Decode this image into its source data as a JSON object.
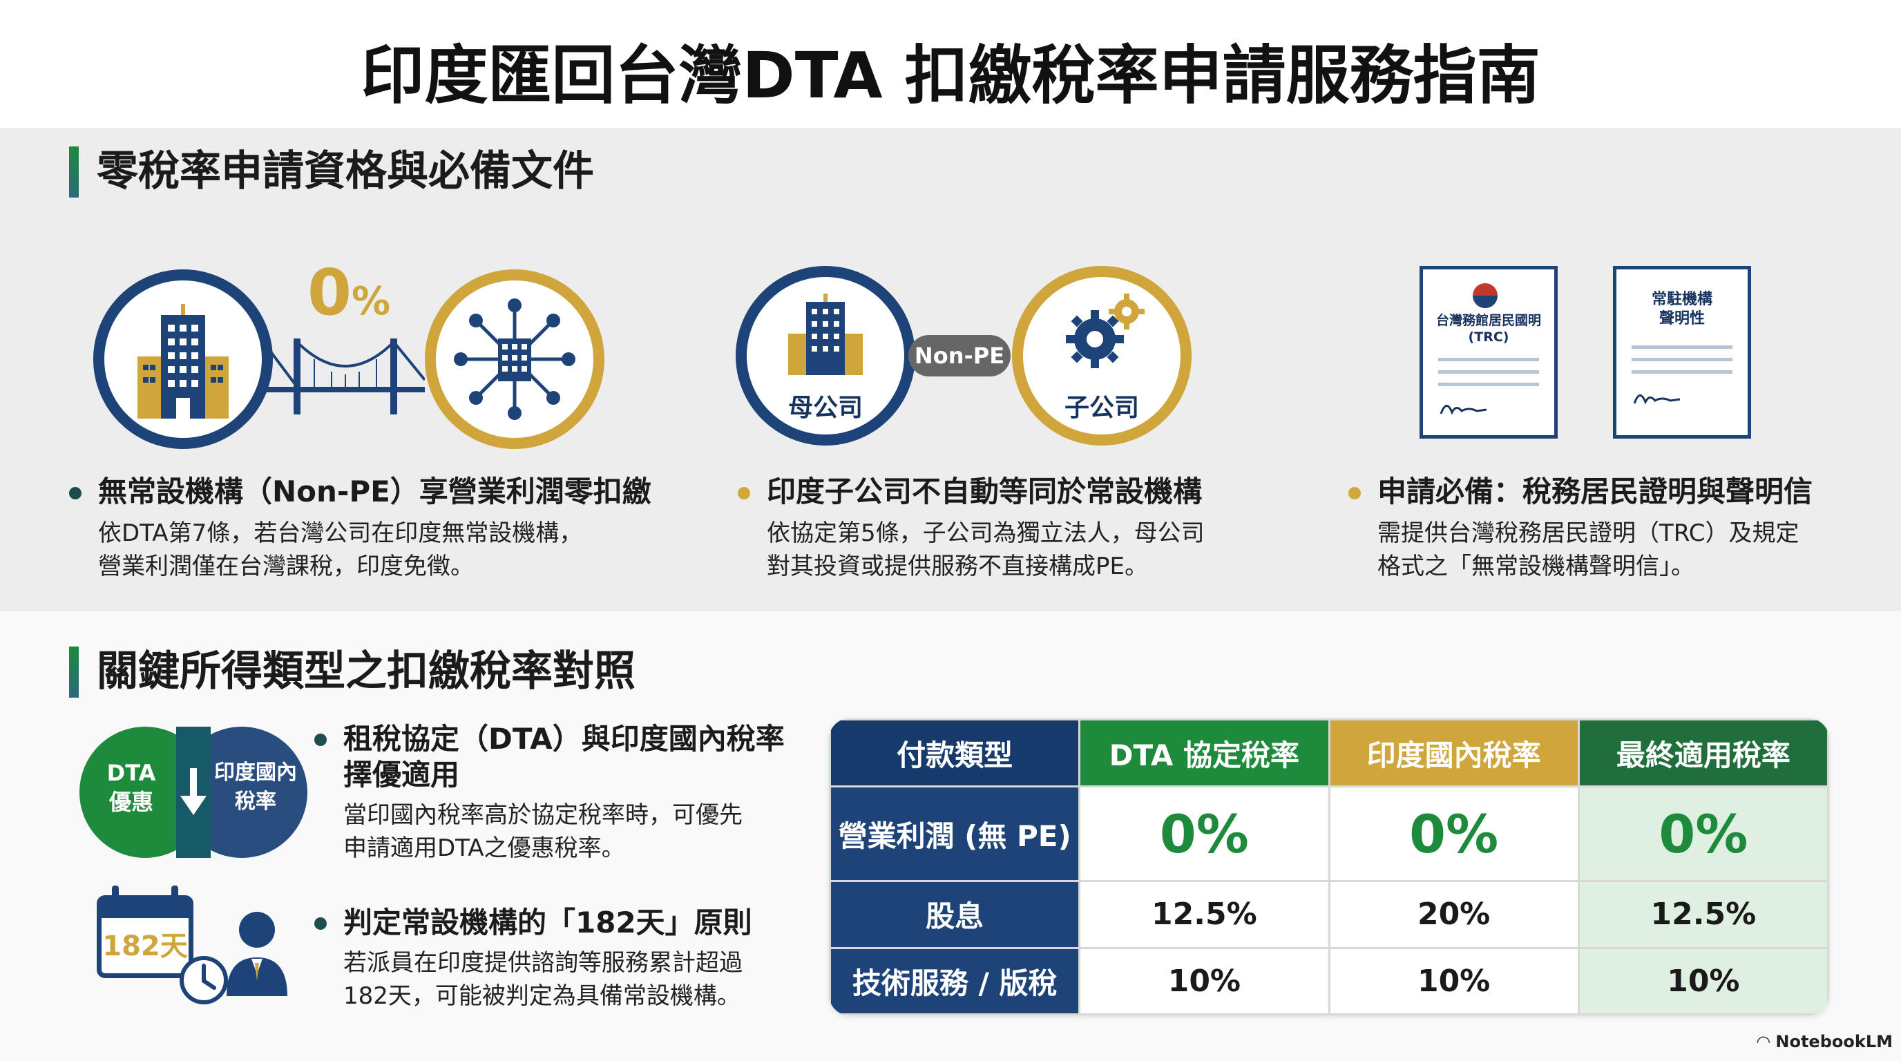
{
  "page": {
    "title": "印度匯回台灣DTA 扣繳稅率申請服務指南",
    "brand": "NotebookLM"
  },
  "section1": {
    "heading": "零稅率申請資格與必備文件",
    "graphic1": {
      "percent_big": "0",
      "percent_small": "%"
    },
    "graphic2": {
      "badge": "Non-PE",
      "parent_label": "母公司",
      "sub_label": "子公司"
    },
    "graphic3": {
      "doc1_title_line1": "台灣務館居民國明",
      "doc1_title_line2": "(TRC)",
      "doc2_title_line1": "常駐機構",
      "doc2_title_line2": "聲明性"
    },
    "points": [
      {
        "title": "無常設機構（Non-PE）享營業利潤零扣繳",
        "body_line1": "依DTA第7條，若台灣公司在印度無常設機構，",
        "body_line2": "營業利潤僅在台灣課稅，印度免徵。",
        "bullet_color": "#1d4e4e"
      },
      {
        "title": "印度子公司不自動等同於常設機構",
        "body_line1": "依協定第5條，子公司為獨立法人，母公司",
        "body_line2": "對其投資或提供服務不直接構成PE。",
        "bullet_color": "#d4a73a"
      },
      {
        "title": "申請必備：稅務居民證明與聲明信",
        "body_line1": "需提供台灣稅務居民證明（TRC）及規定",
        "body_line2": "格式之「無常設機構聲明信」。",
        "bullet_color": "#d4a73a"
      }
    ]
  },
  "section2": {
    "heading": "關鍵所得類型之扣繳稅率對照",
    "venn": {
      "left_line1": "DTA",
      "left_line2": "優惠",
      "right_line1": "印度國內",
      "right_line2": "稅率"
    },
    "calendar": {
      "days": "182天"
    },
    "points": [
      {
        "title_line1": "租稅協定（DTA）與印度國內稅率",
        "title_line2": "擇優適用",
        "body_line1": "當印國內稅率高於協定稅率時，可優先",
        "body_line2": "申請適用DTA之優惠稅率。"
      },
      {
        "title_line1": "判定常設機構的「182天」原則",
        "body_line1": "若派員在印度提供諮詢等服務累計超過",
        "body_line2": "182天，可能被判定為具備常設機構。"
      }
    ],
    "table": {
      "headers": [
        "付款類型",
        "DTA 協定稅率",
        "印度國內稅率",
        "最終適用稅率"
      ],
      "header_colors": [
        "#163a6b",
        "#1e8a3c",
        "#cfa53c",
        "#1f6e3c"
      ],
      "rows": [
        {
          "type": "營業利潤 (無 PE)",
          "dta": "0%",
          "domestic": "0%",
          "final": "0%"
        },
        {
          "type": "股息",
          "dta": "12.5%",
          "domestic": "20%",
          "final": "12.5%"
        },
        {
          "type": "技術服務 / 版稅",
          "dta": "10%",
          "domestic": "10%",
          "final": "10%"
        }
      ]
    }
  },
  "colors": {
    "navy": "#1d4378",
    "gold": "#d4a73a",
    "green": "#1e8a3c"
  }
}
